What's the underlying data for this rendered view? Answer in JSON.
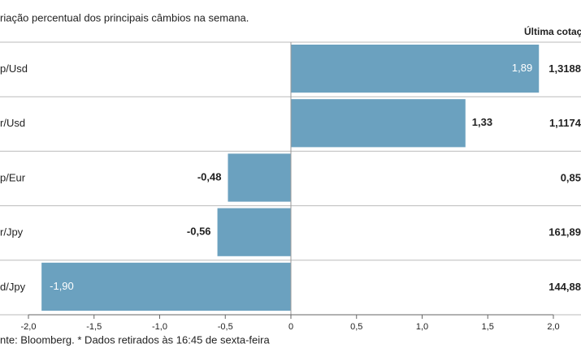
{
  "chart_data": {
    "type": "hbar",
    "title": "riação percentual dos principais câmbios na semana.",
    "categories": [
      "p/Usd",
      "r/Usd",
      "p/Eur",
      "r/Jpy",
      "d/Jpy"
    ],
    "values": [
      1.89,
      1.33,
      -0.48,
      -0.56,
      -1.9
    ],
    "value_labels": [
      "1,89",
      "1,33",
      "-0,48",
      "-0,56",
      "-1,90"
    ],
    "color": "#6ba1bf",
    "xlim": [
      -2.0,
      2.0
    ],
    "xticks": [
      {
        "value": -2.0,
        "label": "-2,0"
      },
      {
        "value": -1.5,
        "label": "-1,5"
      },
      {
        "value": -1.0,
        "label": "-1,0"
      },
      {
        "value": -0.5,
        "label": "-0,5"
      },
      0,
      {
        "value": 0.5,
        "label": "0,5"
      },
      {
        "value": 1.0,
        "label": "1,0"
      },
      {
        "value": 1.5,
        "label": "1,5"
      },
      {
        "value": 2.0,
        "label": "2,0"
      }
    ],
    "last_quote_header": "Última cotaç",
    "last_quotes": [
      "1,3188",
      "1,1174",
      "0,85",
      "161,89",
      "144,88"
    ],
    "source": "nte: Bloomberg.  * Dados retirados às 16:45 de sexta-feira"
  }
}
